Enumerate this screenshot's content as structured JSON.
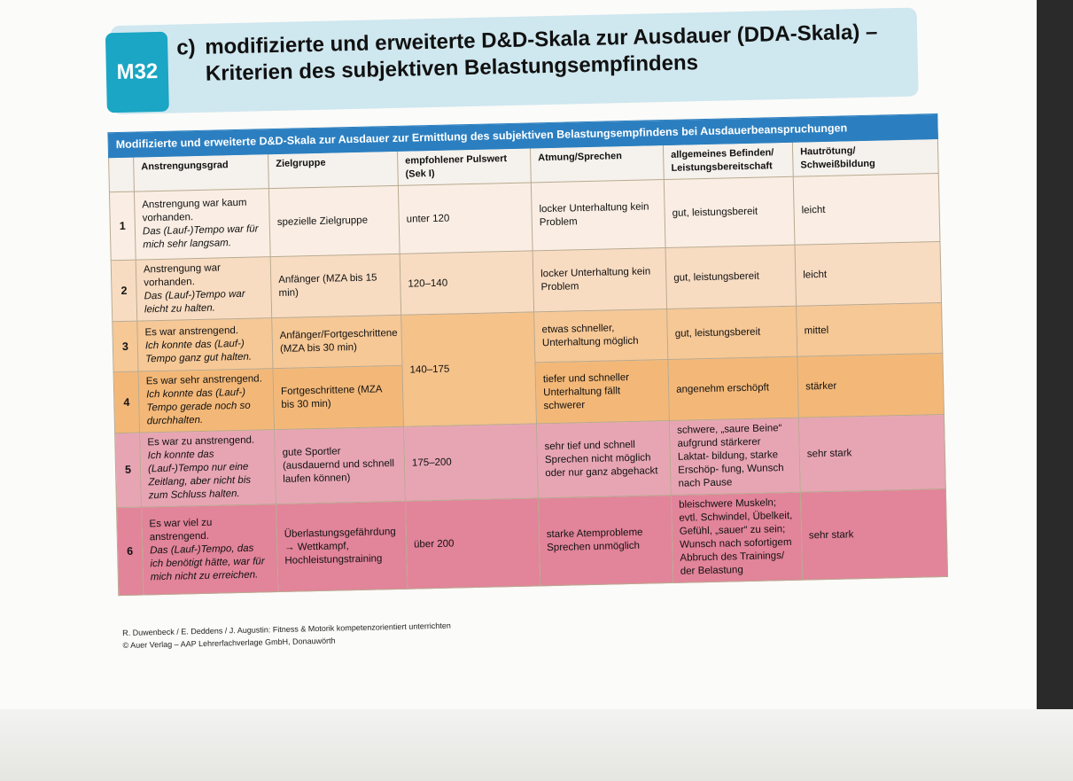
{
  "badge": "M32",
  "title": {
    "letter": "c)",
    "line1": "modifizierte und erweiterte D&D-Skala zur Ausdauer (DDA-Skala) –",
    "line2": "Kriterien des subjektiven Belastungsempfindens"
  },
  "table": {
    "caption": "Modifizierte und erweiterte D&D-Skala zur Ausdauer zur Ermittlung des subjektiven Belastungsempfindens bei Ausdauerbeanspruchungen",
    "headers": {
      "h0": "",
      "h1": "Anstrengungsgrad",
      "h2": "Zielgruppe",
      "h3": "empfohlener Pulswert (Sek I)",
      "h4": "Atmung/Sprechen",
      "h5": "allgemeines Befinden/ Leistungsbereitschaft",
      "h6": "Hautrötung/ Schweißbildung"
    },
    "rows": [
      {
        "num": "1",
        "grade": "Anstrengung war kaum vorhanden.",
        "grade_it": "Das (Lauf-)Tempo war für mich sehr langsam.",
        "group": "spezielle Zielgruppe",
        "pulse": "unter 120",
        "breath": "locker Unterhaltung kein Problem",
        "feeling": "gut, leistungsbereit",
        "skin": "leicht"
      },
      {
        "num": "2",
        "grade": "Anstrengung war vorhanden.",
        "grade_it": "Das (Lauf-)Tempo war leicht zu halten.",
        "group": "Anfänger (MZA bis 15 min)",
        "pulse": "120–140",
        "breath": "locker Unterhaltung kein Problem",
        "feeling": "gut, leistungsbereit",
        "skin": "leicht"
      },
      {
        "num": "3",
        "grade": "Es war anstrengend.",
        "grade_it": "Ich konnte das (Lauf-) Tempo ganz gut halten.",
        "group": "Anfänger/Fortgeschrittene (MZA bis 30 min)",
        "pulse": "140–175",
        "breath": "etwas schneller, Unterhaltung möglich",
        "feeling": "gut, leistungsbereit",
        "skin": "mittel"
      },
      {
        "num": "4",
        "grade": "Es war sehr anstrengend.",
        "grade_it": "Ich konnte das (Lauf-) Tempo gerade noch so durchhalten.",
        "group": "Fortgeschrittene (MZA bis 30 min)",
        "pulse": "",
        "breath": "tiefer und schneller Unterhaltung fällt schwerer",
        "feeling": "angenehm erschöpft",
        "skin": "stärker"
      },
      {
        "num": "5",
        "grade": "Es war zu anstrengend.",
        "grade_it": "Ich konnte das (Lauf-)Tempo nur eine Zeitlang, aber nicht bis zum Schluss halten.",
        "group": "gute Sportler (ausdauernd und schnell laufen können)",
        "pulse": "175–200",
        "breath": "sehr tief und schnell Sprechen nicht möglich oder nur ganz abgehackt",
        "feeling": "schwere, „saure Beine“ aufgrund stärkerer Laktat- bildung, starke Erschöp- fung, Wunsch nach Pause",
        "skin": "sehr stark"
      },
      {
        "num": "6",
        "grade": "Es war viel zu anstrengend.",
        "grade_it": "Das (Lauf-)Tempo, das ich benötigt hätte, war für mich nicht zu erreichen.",
        "group": "Überlastungsgefährdung → Wettkampf, Hochleistungstraining",
        "pulse": "über 200",
        "breath": "starke Atemprobleme Sprechen unmöglich",
        "feeling": "bleischwere Muskeln; evtl. Schwindel, Übelkeit, Gefühl, „sauer“ zu sein; Wunsch nach sofortigem Abbruch des Trainings/ der Belastung",
        "skin": "sehr stark"
      }
    ]
  },
  "credits": {
    "line1": "R. Duwenbeck / E. Deddens / J. Augustin: Fitness & Motorik kompetenzorientiert unterrichten",
    "line2": "© Auer Verlag – AAP Lehrerfachverlage GmbH, Donauwörth"
  }
}
